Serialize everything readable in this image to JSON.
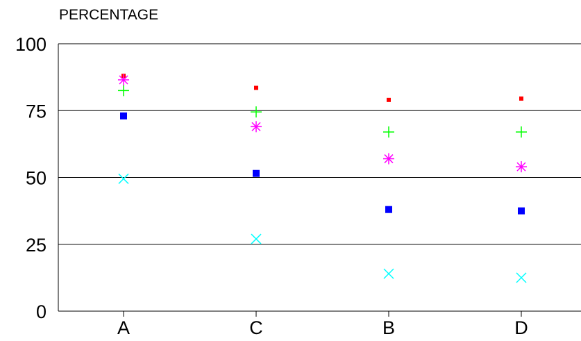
{
  "chart_data": {
    "type": "scatter",
    "ylabel": "PERCENTAGE",
    "xlabel": "",
    "categories": [
      "A",
      "C",
      "B",
      "D"
    ],
    "ylim": [
      0,
      100
    ],
    "yticks": [
      0,
      25,
      50,
      75,
      100
    ],
    "grid": "horizontal",
    "legend": "none",
    "series": [
      {
        "marker": "small-square",
        "color": "#ff0000",
        "values": [
          88,
          83.5,
          79,
          79.5
        ]
      },
      {
        "marker": "plus",
        "color": "#00ff00",
        "values": [
          82.5,
          74.5,
          67,
          67
        ]
      },
      {
        "marker": "asterisk",
        "color": "#ff00ff",
        "values": [
          86.5,
          69,
          57,
          54
        ]
      },
      {
        "marker": "square",
        "color": "#0000ff",
        "values": [
          73,
          51.5,
          38,
          37.5
        ]
      },
      {
        "marker": "x",
        "color": "#00ffff",
        "values": [
          49.5,
          27,
          14,
          12.5
        ]
      }
    ]
  }
}
